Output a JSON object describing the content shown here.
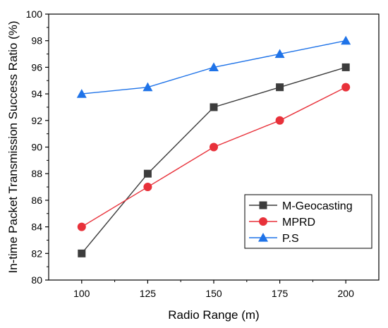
{
  "chart_data": {
    "type": "line",
    "xlabel": "Radio Range (m)",
    "ylabel": "In-time Packet Transmission Success Ratio (%)",
    "x": [
      100,
      125,
      150,
      175,
      200
    ],
    "xlim": [
      87.5,
      212.5
    ],
    "ylim": [
      80,
      100
    ],
    "xticks": [
      "100",
      "125",
      "150",
      "175",
      "200"
    ],
    "yticks": [
      "80",
      "82",
      "84",
      "86",
      "88",
      "90",
      "92",
      "94",
      "96",
      "98",
      "100"
    ],
    "grid": false,
    "legend_position": "bottom-right",
    "series": [
      {
        "name": "M-Geocasting",
        "color": "#3c3c3c",
        "marker": "square",
        "values": [
          82,
          88,
          93,
          94.5,
          96
        ]
      },
      {
        "name": "MPRD",
        "color": "#e8313a",
        "marker": "circle",
        "values": [
          84,
          87,
          90,
          92,
          94.5
        ]
      },
      {
        "name": "P.S",
        "color": "#1f73e8",
        "marker": "triangle",
        "values": [
          94,
          94.5,
          96,
          97,
          98
        ]
      }
    ]
  }
}
